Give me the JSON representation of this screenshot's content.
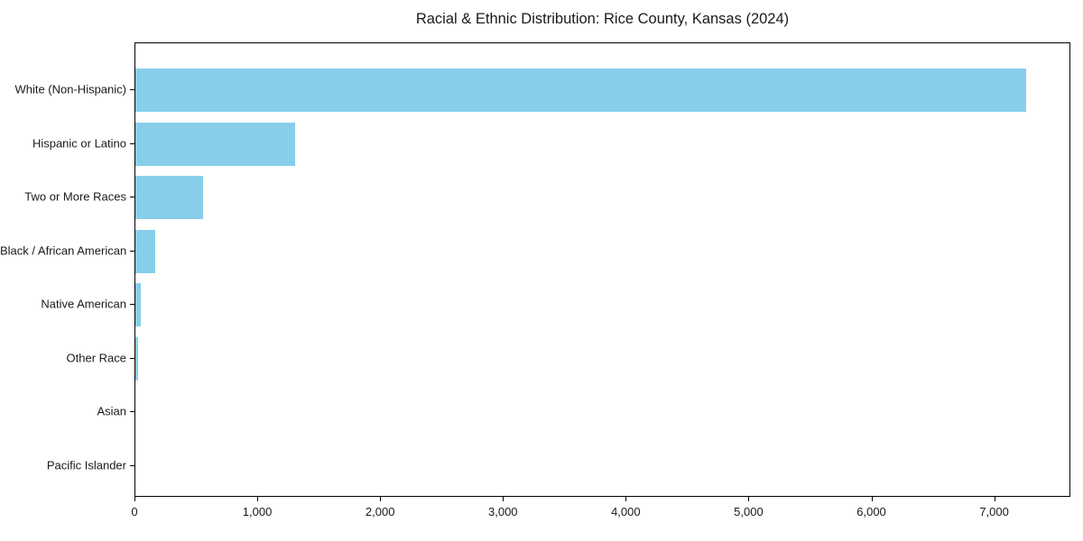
{
  "title": "Racial & Ethnic Distribution: Rice County, Kansas (2024)",
  "chart_data": {
    "type": "bar",
    "orientation": "horizontal",
    "title": "Racial & Ethnic Distribution: Rice County, Kansas (2024)",
    "xlabel": "",
    "ylabel": "",
    "categories": [
      "White (Non-Hispanic)",
      "Hispanic or Latino",
      "Two or More Races",
      "Black / African American",
      "Native American",
      "Other Race",
      "Asian",
      "Pacific Islander"
    ],
    "values": [
      7250,
      1300,
      550,
      165,
      45,
      25,
      0,
      0
    ],
    "xlim": [
      0,
      7620
    ],
    "x_ticks": [
      0,
      1000,
      2000,
      3000,
      4000,
      5000,
      6000,
      7000
    ],
    "x_tick_labels": [
      "0",
      "1,000",
      "2,000",
      "3,000",
      "4,000",
      "5,000",
      "6,000",
      "7,000"
    ],
    "bar_color": "#87CEEB",
    "axis_color": "#000000",
    "background_color": "#ffffff",
    "grid": false,
    "legend": null
  }
}
